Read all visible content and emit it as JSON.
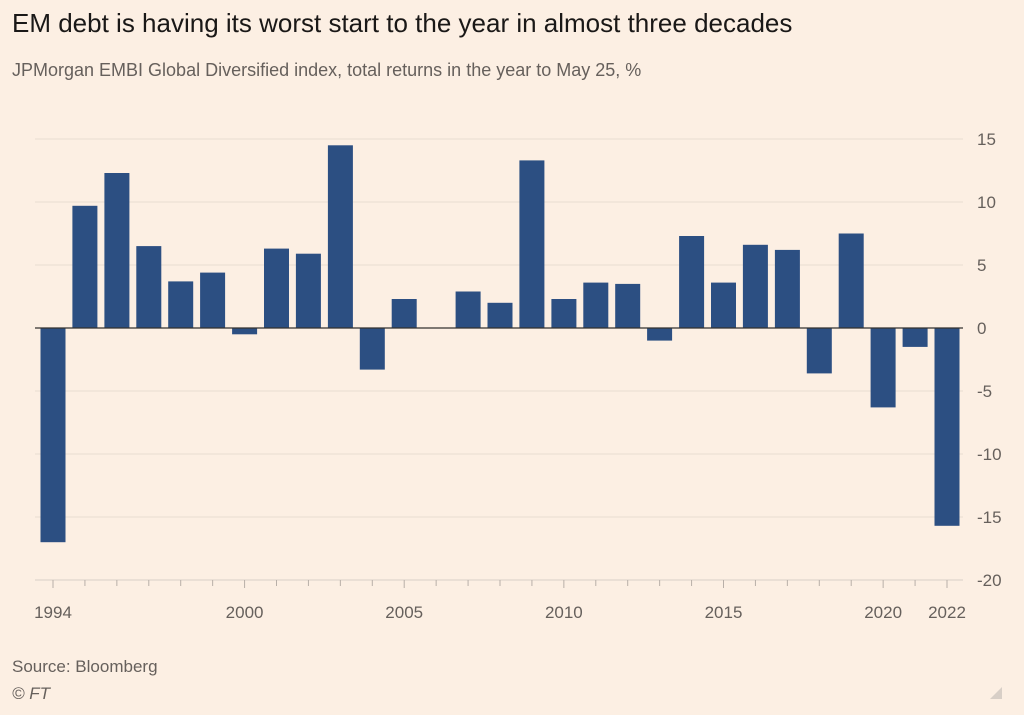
{
  "header": {
    "title": "EM debt is having its worst start to the year in almost three decades",
    "subtitle": "JPMorgan EMBI Global Diversified index, total returns in the year to May 25, %"
  },
  "footer": {
    "source": "Source: Bloomberg",
    "credit": "© FT"
  },
  "colors": {
    "background": "#fcefe3",
    "bar": "#2c4f82",
    "grid": "#e8dcd1",
    "zero_line": "#33302e",
    "axis_text": "#66605c"
  },
  "chart_data": {
    "type": "bar",
    "title": "EM debt is having its worst start to the year in almost three decades",
    "subtitle": "JPMorgan EMBI Global Diversified index, total returns in the year to May 25, %",
    "xlabel": "",
    "ylabel": "%",
    "ylim": [
      -20,
      15
    ],
    "yticks": [
      15,
      10,
      5,
      0,
      -5,
      -10,
      -15,
      -20
    ],
    "xtick_labels": [
      "1994",
      "2000",
      "2005",
      "2010",
      "2015",
      "2020",
      "2022"
    ],
    "grid": true,
    "y_axis_side": "right",
    "categories": [
      "1994",
      "1995",
      "1996",
      "1997",
      "1998",
      "1999",
      "2000",
      "2001",
      "2002",
      "2003",
      "2004",
      "2005",
      "2006",
      "2007",
      "2008",
      "2009",
      "2010",
      "2011",
      "2012",
      "2013",
      "2014",
      "2015",
      "2016",
      "2017",
      "2018",
      "2019",
      "2020",
      "2021",
      "2022"
    ],
    "values": [
      -17.0,
      9.7,
      12.3,
      6.5,
      3.7,
      4.4,
      -0.5,
      6.3,
      5.9,
      14.5,
      -3.3,
      2.3,
      0.0,
      2.9,
      2.0,
      13.3,
      2.3,
      3.6,
      3.5,
      -1.0,
      7.3,
      3.6,
      6.6,
      6.2,
      -3.6,
      7.5,
      -6.3,
      -1.5,
      -15.7
    ],
    "source": "Source: Bloomberg"
  }
}
